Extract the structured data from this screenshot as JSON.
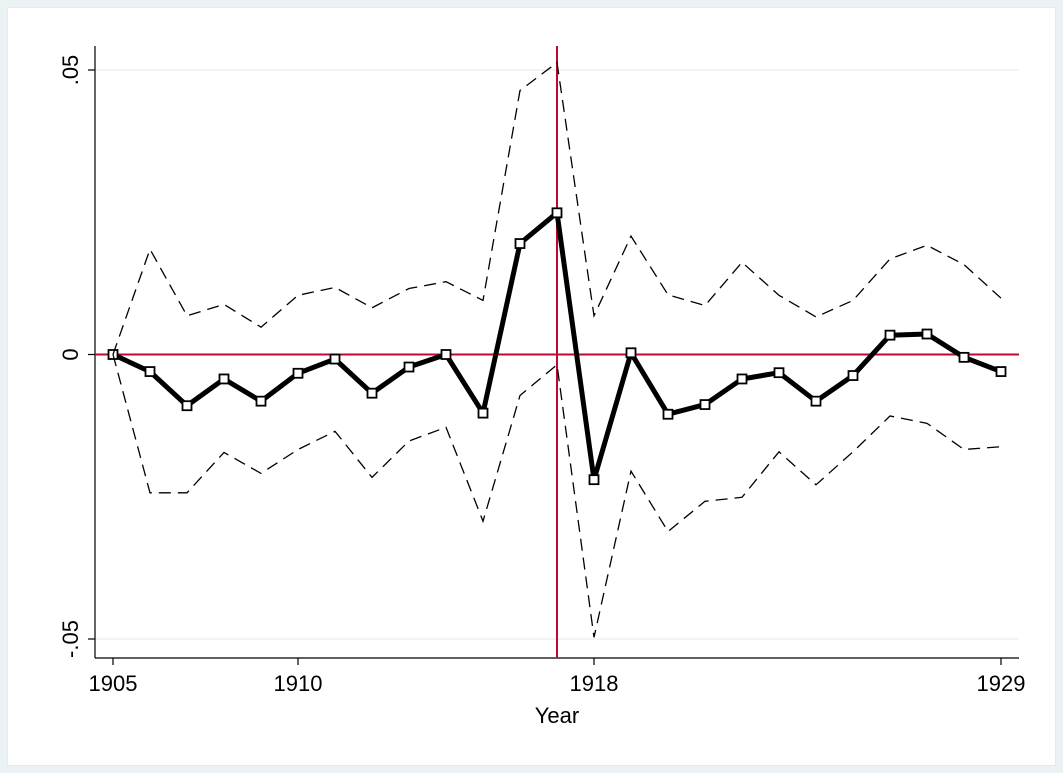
{
  "colors": {
    "background": "#ffffff",
    "outer_border": "#eaf2f3",
    "reference_lines": "#c10534",
    "estimate_line": "#000000",
    "ci_line": "#000000"
  },
  "chart_data": {
    "type": "line",
    "xlabel": "Year",
    "ylabel": "",
    "xlim": [
      1905,
      1929
    ],
    "ylim": [
      -0.05,
      0.05
    ],
    "x_ticks": [
      1905,
      1910,
      1918,
      1929
    ],
    "x_tick_labels": [
      "1905",
      "1910",
      "1918",
      "1929"
    ],
    "y_ticks": [
      -0.05,
      0,
      0.05
    ],
    "y_tick_labels": [
      "-.05",
      "0",
      ".05"
    ],
    "grid": true,
    "reference_lines": {
      "horizontal": 0,
      "vertical": 1917
    },
    "x": [
      1905,
      1906,
      1907,
      1908,
      1909,
      1910,
      1911,
      1912,
      1913,
      1914,
      1915,
      1916,
      1917,
      1918,
      1919,
      1920,
      1921,
      1922,
      1923,
      1924,
      1925,
      1926,
      1927,
      1928,
      1929
    ],
    "series": [
      {
        "style": "solid-thick-square-markers",
        "values": [
          0.0,
          -0.003,
          -0.009,
          -0.0043,
          -0.0082,
          -0.0033,
          -0.0008,
          -0.0068,
          -0.0022,
          0.0,
          -0.0103,
          0.0195,
          0.0249,
          -0.022,
          0.0003,
          -0.0105,
          -0.0088,
          -0.0043,
          -0.0032,
          -0.0082,
          -0.0037,
          0.0034,
          0.0036,
          -0.0005,
          -0.003
        ]
      },
      {
        "style": "dashed-upper",
        "values": [
          0.0,
          0.0185,
          0.0068,
          0.0088,
          0.0048,
          0.0104,
          0.0118,
          0.0082,
          0.0116,
          0.0128,
          0.0095,
          0.0464,
          0.0513,
          0.0068,
          0.0208,
          0.0105,
          0.0086,
          0.0162,
          0.0104,
          0.0066,
          0.0095,
          0.0168,
          0.0192,
          0.0158,
          0.0099
        ]
      },
      {
        "style": "dashed-lower",
        "values": [
          0.0,
          -0.0243,
          -0.0243,
          -0.0172,
          -0.0209,
          -0.0167,
          -0.0135,
          -0.0216,
          -0.0152,
          -0.0128,
          -0.0293,
          -0.0072,
          -0.0018,
          -0.0497,
          -0.0205,
          -0.0311,
          -0.0258,
          -0.0251,
          -0.0171,
          -0.0229,
          -0.0171,
          -0.0108,
          -0.0121,
          -0.0167,
          -0.0162
        ]
      }
    ]
  }
}
